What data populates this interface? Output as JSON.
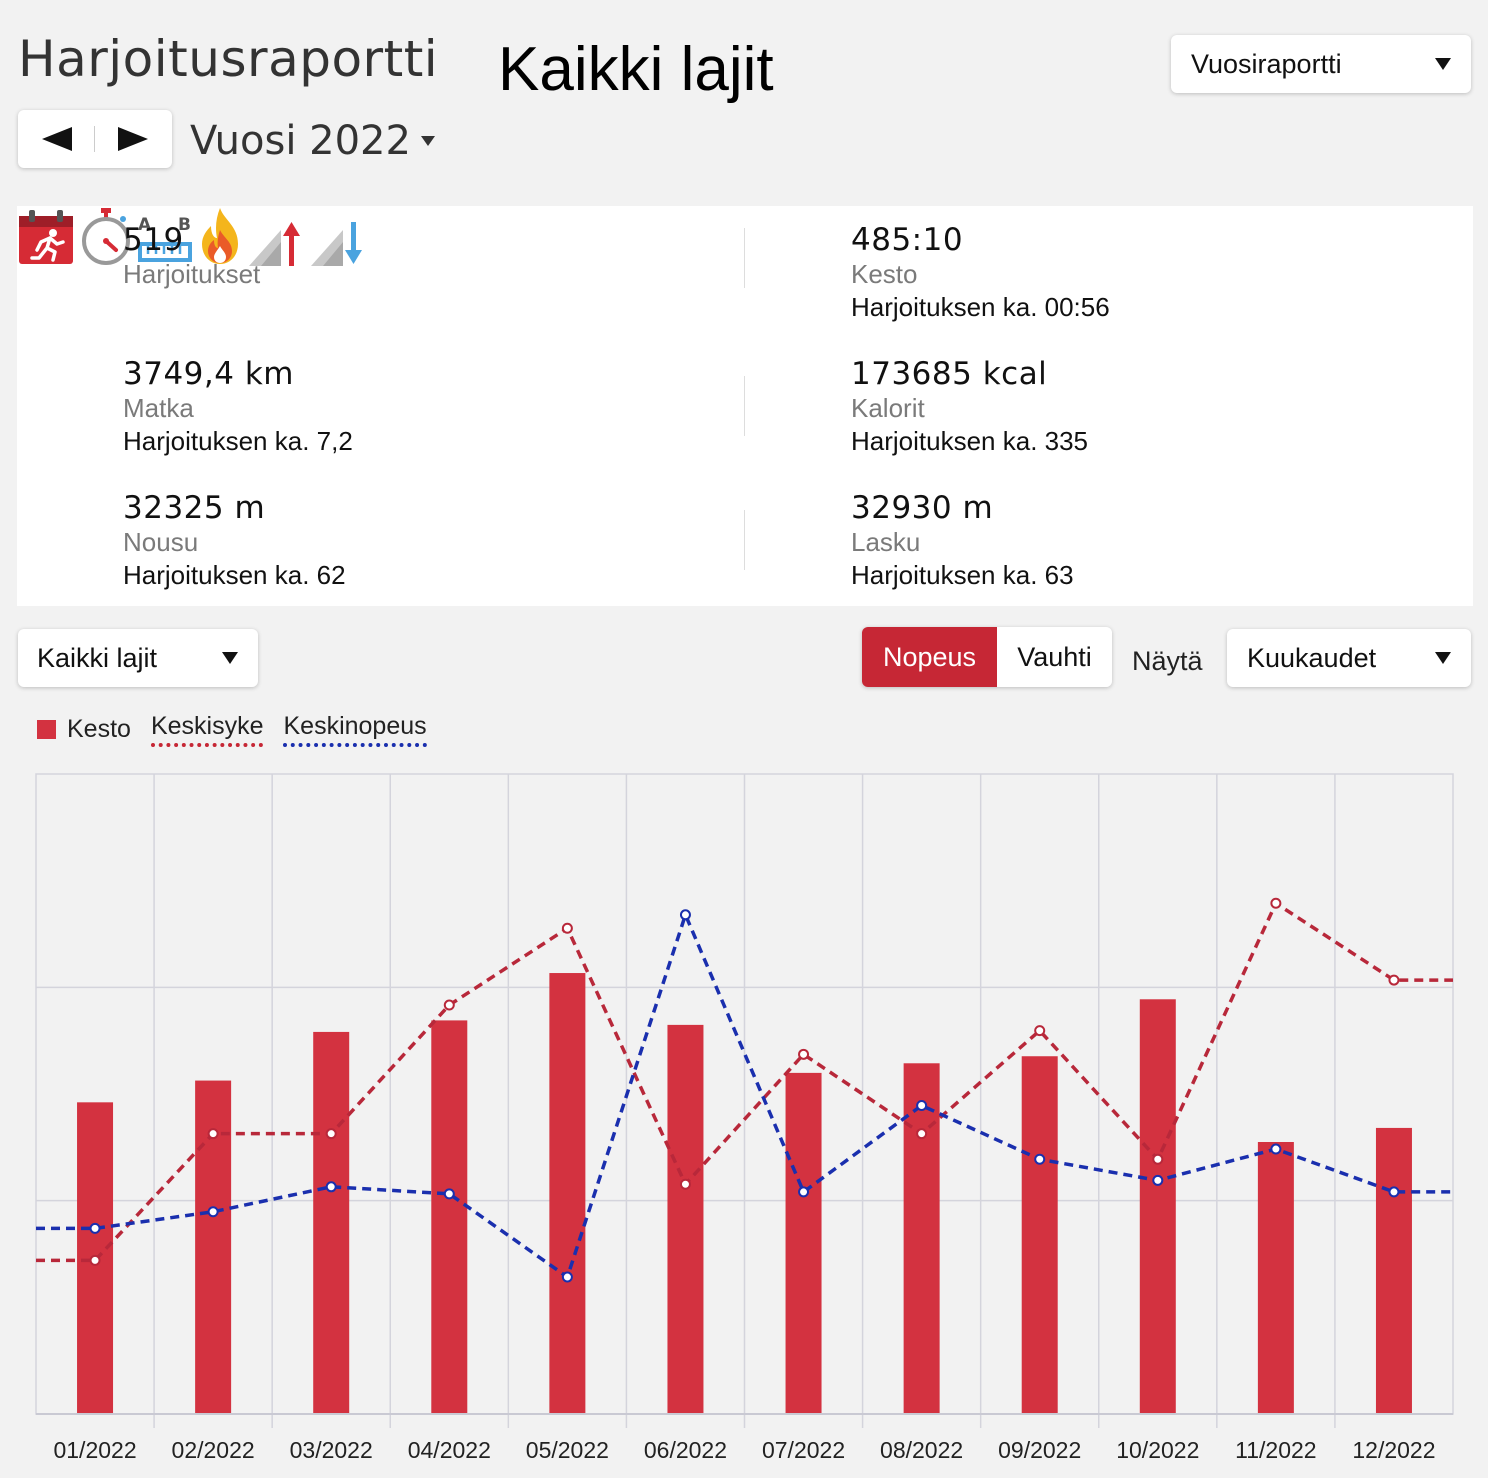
{
  "header": {
    "title": "Harjoitusraportti",
    "sport_title": "Kaikki lajit",
    "report_select": "Vuosiraportti",
    "period_label": "Vuosi 2022"
  },
  "stats": {
    "workouts": {
      "value": "519",
      "label": "Harjoitukset"
    },
    "duration": {
      "value": "485:10",
      "label": "Kesto",
      "avg": "Harjoituksen ka. 00:56"
    },
    "distance": {
      "value": "3749,4 km",
      "label": "Matka",
      "avg": "Harjoituksen ka. 7,2"
    },
    "calories": {
      "value": "173685 kcal",
      "label": "Kalorit",
      "avg": "Harjoituksen ka. 335"
    },
    "ascent": {
      "value": "32325 m",
      "label": "Nousu",
      "avg": "Harjoituksen ka. 62"
    },
    "descent": {
      "value": "32930 m",
      "label": "Lasku",
      "avg": "Harjoituksen ka. 63"
    }
  },
  "controls": {
    "sport_select": "Kaikki lajit",
    "speed_option": "Nopeus",
    "pace_option": "Vauhti",
    "show_label": "Näytä",
    "period_select": "Kuukaudet"
  },
  "icons": {
    "workouts": "calendar-runner-icon",
    "duration": "stopwatch-icon",
    "distance": "ruler-ab-icon",
    "calories": "flame-icon",
    "ascent": "ascent-icon",
    "descent": "descent-icon"
  },
  "colors": {
    "accent": "#c62735",
    "bar": "#d33240",
    "heart_rate_line": "#b8283a",
    "speed_line": "#1a2fae"
  },
  "chart_data": {
    "type": "bar",
    "categories": [
      "01/2022",
      "02/2022",
      "03/2022",
      "04/2022",
      "05/2022",
      "06/2022",
      "07/2022",
      "08/2022",
      "09/2022",
      "10/2022",
      "11/2022",
      "12/2022"
    ],
    "legend_position": "top-left",
    "grid": true,
    "series": [
      {
        "name": "Kesto",
        "type": "bar",
        "values": [
          0.487,
          0.521,
          0.597,
          0.615,
          0.689,
          0.608,
          0.533,
          0.548,
          0.559,
          0.648,
          0.425,
          0.447
        ]
      },
      {
        "name": "Keskisyke",
        "type": "line",
        "values": [
          0.24,
          0.438,
          0.438,
          0.639,
          0.759,
          0.359,
          0.562,
          0.438,
          0.599,
          0.398,
          0.798,
          0.678
        ]
      },
      {
        "name": "Keskinopeus",
        "type": "line",
        "values": [
          0.29,
          0.316,
          0.355,
          0.344,
          0.214,
          0.78,
          0.347,
          0.482,
          0.398,
          0.365,
          0.414,
          0.347
        ]
      }
    ]
  }
}
